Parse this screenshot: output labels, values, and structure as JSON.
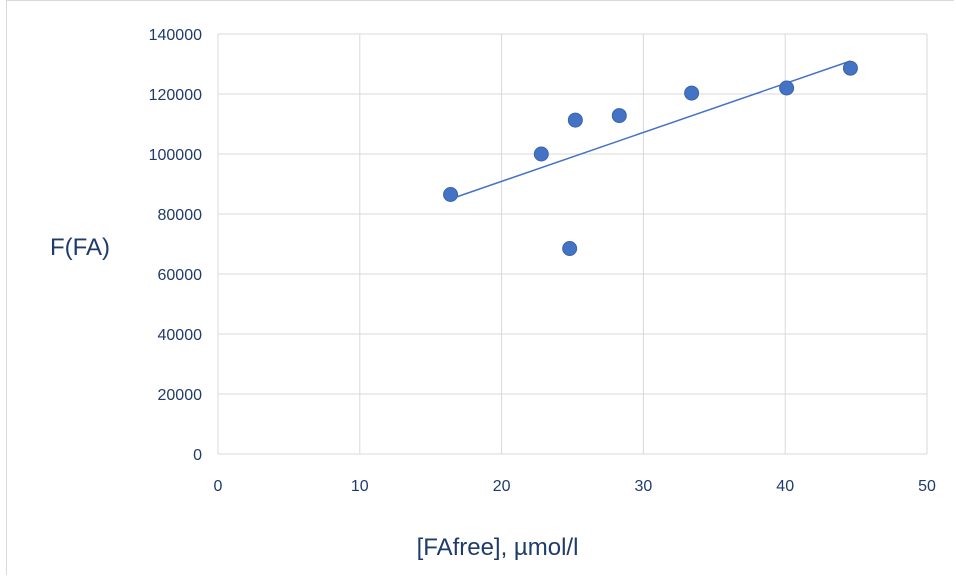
{
  "chart_data": {
    "type": "scatter",
    "title": "",
    "xlabel": "[FAfree], µmol/l",
    "ylabel": "F(FA)",
    "xlim": [
      0,
      50
    ],
    "ylim": [
      0,
      140000
    ],
    "x_ticks": [
      0,
      10,
      20,
      30,
      40,
      50
    ],
    "y_ticks": [
      0,
      20000,
      40000,
      60000,
      80000,
      100000,
      120000,
      140000
    ],
    "x_tick_labels": [
      "0",
      "10",
      "20",
      "30",
      "40",
      "50"
    ],
    "y_tick_labels": [
      "0",
      "20000",
      "40000",
      "60000",
      "80000",
      "100000",
      "120000",
      "140000"
    ],
    "grid": true,
    "legend": "none",
    "series": [
      {
        "points": [
          {
            "x": 16.4,
            "y": 86500
          },
          {
            "x": 22.8,
            "y": 100000
          },
          {
            "x": 24.8,
            "y": 68500
          },
          {
            "x": 25.2,
            "y": 111300
          },
          {
            "x": 28.3,
            "y": 112800
          },
          {
            "x": 33.4,
            "y": 120300
          },
          {
            "x": 40.1,
            "y": 122000
          },
          {
            "x": 44.6,
            "y": 128600
          }
        ],
        "color": "#4472c4"
      }
    ],
    "trendline": {
      "type": "linear",
      "from": {
        "x": 16.4,
        "y": 85000
      },
      "to": {
        "x": 44.6,
        "y": 131000
      },
      "color": "#4472c4"
    },
    "colors": {
      "grid": "#d9d9d9",
      "text": "#1f3b6b",
      "marker": "#4472c4"
    }
  }
}
